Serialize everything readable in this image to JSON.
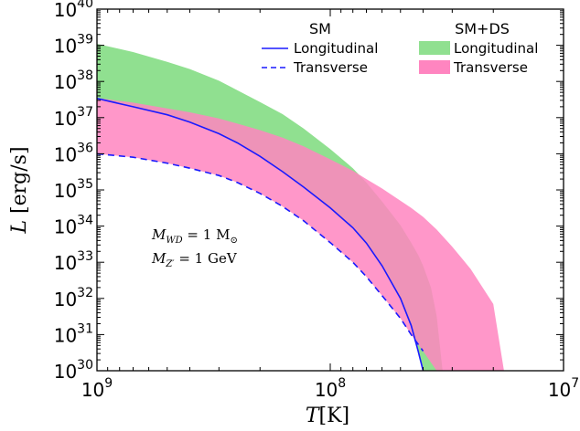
{
  "chart_data": {
    "type": "area",
    "x_axis": {
      "scale": "log",
      "reversed": true,
      "range": [
        1000000000.0,
        10000000.0
      ],
      "ticks": [
        {
          "value": 1000000000.0,
          "base": "10",
          "exp": "9"
        },
        {
          "value": 100000000.0,
          "base": "10",
          "exp": "8"
        },
        {
          "value": 10000000.0,
          "base": "10",
          "exp": "7"
        }
      ]
    },
    "y_axis": {
      "scale": "log",
      "range": [
        1e+30,
        1e+40
      ],
      "ticks": [
        {
          "value": 1e+30,
          "base": "10",
          "exp": "30"
        },
        {
          "value": 1e+31,
          "base": "10",
          "exp": "31"
        },
        {
          "value": 1e+32,
          "base": "10",
          "exp": "32"
        },
        {
          "value": 1e+33,
          "base": "10",
          "exp": "33"
        },
        {
          "value": 1e+34,
          "base": "10",
          "exp": "34"
        },
        {
          "value": 1e+35,
          "base": "10",
          "exp": "35"
        },
        {
          "value": 1e+36,
          "base": "10",
          "exp": "36"
        },
        {
          "value": 1e+37,
          "base": "10",
          "exp": "37"
        },
        {
          "value": 1e+38,
          "base": "10",
          "exp": "38"
        },
        {
          "value": 1e+39,
          "base": "10",
          "exp": "39"
        },
        {
          "value": 1e+40,
          "base": "10",
          "exp": "40"
        }
      ]
    },
    "xlabel": "T[K]",
    "ylabel": "L [erg/s]",
    "legend": {
      "placement": "top-right",
      "sm_title": "SM",
      "sm_ds_title": "SM+DS"
    },
    "annotation": [
      "M_WD = 1 M_⊙",
      "M_Z' = 1 GeV"
    ],
    "series": [
      {
        "name": "Longitudinal",
        "group": "SM",
        "style": "line-solid",
        "color": "#1a1aff",
        "x": [
          1000000000.0,
          700000000.0,
          500000000.0,
          400000000.0,
          300000000.0,
          250000000.0,
          200000000.0,
          160000000.0,
          130000000.0,
          100000000.0,
          80000000.0,
          70000000.0,
          60000000.0,
          50000000.0,
          45000000.0,
          42000000.0,
          40000000.0
        ],
        "y": [
          3.4e+37,
          2e+37,
          1.2e+37,
          7.5e+36,
          3.6e+36,
          2e+36,
          8.5e+35,
          3.2e+35,
          1.2e+35,
          3.2e+34,
          9e+33,
          3.4e+33,
          8e+32,
          1e+32,
          1.8e+31,
          3.5e+30,
          1e+30
        ]
      },
      {
        "name": "Transverse",
        "group": "SM",
        "style": "line-dashed",
        "color": "#1a1aff",
        "x": [
          1000000000.0,
          700000000.0,
          500000000.0,
          400000000.0,
          300000000.0,
          250000000.0,
          200000000.0,
          160000000.0,
          130000000.0,
          100000000.0,
          80000000.0,
          70000000.0,
          60000000.0,
          50000000.0,
          45000000.0,
          40000000.0
        ],
        "y": [
          1e+36,
          8e+35,
          5.5e+35,
          4e+35,
          2.5e+35,
          1.6e+35,
          8e+34,
          3.5e+34,
          1.4e+34,
          3.5e+33,
          1e+33,
          4e+32,
          1.2e+32,
          2.8e+31,
          1e+31,
          3.5e+30
        ]
      },
      {
        "name": "Longitudinal",
        "group": "SM+DS",
        "style": "band",
        "color": "#90e090",
        "x": [
          1000000000.0,
          700000000.0,
          500000000.0,
          400000000.0,
          300000000.0,
          250000000.0,
          200000000.0,
          160000000.0,
          130000000.0,
          100000000.0,
          80000000.0,
          70000000.0,
          60000000.0,
          50000000.0,
          45000000.0,
          42000000.0,
          40000000.0,
          37000000.0,
          35000000.0,
          33000000.0
        ],
        "y_lower": [
          3.4e+37,
          2e+37,
          1.2e+37,
          7.5e+36,
          3.6e+36,
          2e+36,
          8.5e+35,
          3.2e+35,
          1.2e+35,
          3.2e+34,
          9e+33,
          3.4e+33,
          8e+32,
          1e+32,
          1.8e+31,
          3.5e+30,
          1e+30,
          null,
          null,
          null
        ],
        "y_upper": [
          1.1e+39,
          6.5e+38,
          3.5e+38,
          2.2e+38,
          1.05e+38,
          5.7e+37,
          2.7e+37,
          1.25e+37,
          5e+36,
          1.35e+36,
          4e+35,
          1.6e+35,
          4.8e+34,
          1.05e+34,
          3.5e+33,
          1.6e+33,
          8e+32,
          2e+32,
          3.3e+31,
          1e+30
        ]
      },
      {
        "name": "Transverse",
        "group": "SM+DS",
        "style": "band",
        "color": "#ff85c0",
        "x": [
          1000000000.0,
          700000000.0,
          500000000.0,
          400000000.0,
          300000000.0,
          250000000.0,
          200000000.0,
          160000000.0,
          130000000.0,
          100000000.0,
          80000000.0,
          70000000.0,
          60000000.0,
          50000000.0,
          45000000.0,
          40000000.0,
          35000000.0,
          30000000.0,
          25000000.0,
          20000000.0,
          18000000.0
        ],
        "y_lower": [
          1e+36,
          8e+35,
          5.5e+35,
          4e+35,
          2.5e+35,
          1.6e+35,
          8e+34,
          3.5e+34,
          1.4e+34,
          3.5e+33,
          1e+33,
          4e+32,
          1.2e+32,
          2.8e+31,
          1e+31,
          3.5e+30,
          1e+30,
          null,
          null,
          null,
          null
        ],
        "y_upper": [
          3.5e+37,
          2.6e+37,
          1.8e+37,
          1.4e+37,
          9.5e+36,
          6.8e+36,
          4.5e+36,
          2.8e+36,
          1.6e+36,
          7e+35,
          3.4e+35,
          2e+35,
          1.1e+35,
          5e+34,
          3.2e+34,
          1.8e+34,
          8e+33,
          2.7e+33,
          6.5e+32,
          7e+31,
          1e+30
        ]
      }
    ]
  }
}
